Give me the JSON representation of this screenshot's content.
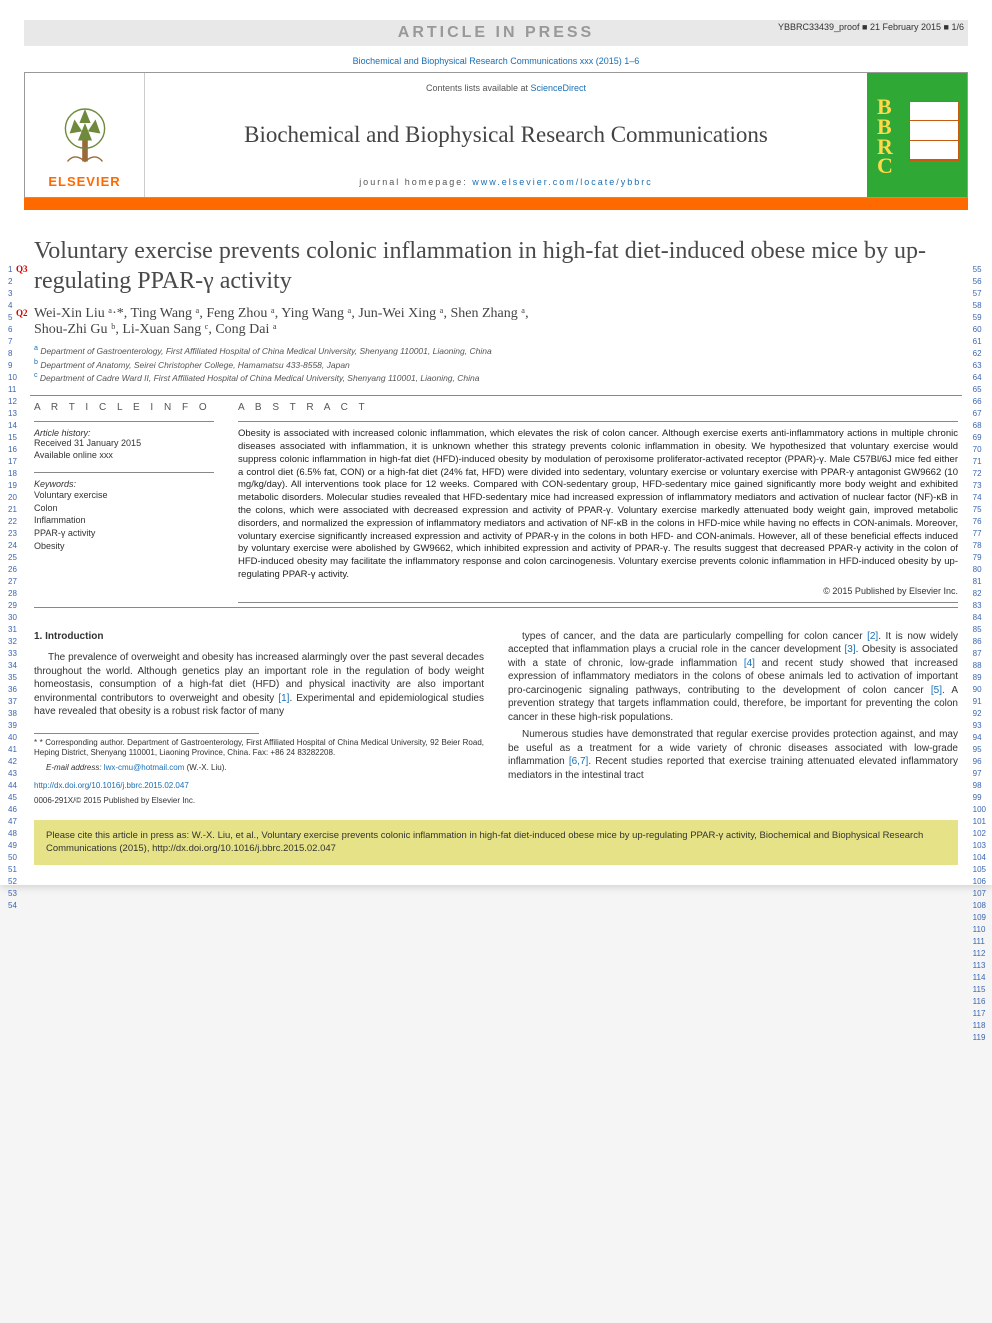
{
  "proof": {
    "article_in_press": "ARTICLE IN PRESS",
    "proof_stamp": "YBBRC33439_proof ■ 21 February 2015 ■ 1/6",
    "ref_link": "Biochemical and Biophysical Research Communications xxx (2015) 1–6"
  },
  "header": {
    "contents_line_pre": "Contents lists available at ",
    "contents_line_link": "ScienceDirect",
    "journal_title": "Biochemical and Biophysical Research Communications",
    "homepage_pre": "journal homepage: ",
    "homepage_link": "www.elsevier.com/locate/ybbrc",
    "publisher": "ELSEVIER",
    "bbrc_letters": "B\nB\nR\nC"
  },
  "title": "Voluntary exercise prevents colonic inflammation in high-fat diet-induced obese mice by up-regulating PPAR-γ activity",
  "q_marks": {
    "q3": "Q3",
    "q2": "Q2"
  },
  "authors_line1": "Wei-Xin Liu ᵃ·*, Ting Wang ᵃ, Feng Zhou ᵃ, Ying Wang ᵃ, Jun-Wei Xing ᵃ, Shen Zhang ᵃ,",
  "authors_line2": "Shou-Zhi Gu ᵇ, Li-Xuan Sang ᶜ, Cong Dai ᵃ",
  "affiliations": {
    "a": "Department of Gastroenterology, First Affiliated Hospital of China Medical University, Shenyang 110001, Liaoning, China",
    "b": "Department of Anatomy, Seirei Christopher College, Hamamatsu 433-8558, Japan",
    "c": "Department of Cadre Ward II, First Affiliated Hospital of China Medical University, Shenyang 110001, Liaoning, China"
  },
  "info": {
    "section_head": "A R T I C L E  I N F O",
    "history_label": "Article history:",
    "received": "Received 31 January 2015",
    "available": "Available online xxx",
    "keywords_head": "Keywords:",
    "keywords": [
      "Voluntary exercise",
      "Colon",
      "Inflammation",
      "PPAR-γ activity",
      "Obesity"
    ]
  },
  "abstract": {
    "section_head": "A B S T R A C T",
    "text": "Obesity is associated with increased colonic inflammation, which elevates the risk of colon cancer. Although exercise exerts anti-inflammatory actions in multiple chronic diseases associated with inflammation, it is unknown whether this strategy prevents colonic inflammation in obesity. We hypothesized that voluntary exercise would suppress colonic inflammation in high-fat diet (HFD)-induced obesity by modulation of peroxisome proliferator-activated receptor (PPAR)-γ. Male C57Bl/6J mice fed either a control diet (6.5% fat, CON) or a high-fat diet (24% fat, HFD) were divided into sedentary, voluntary exercise or voluntary exercise with PPAR-γ antagonist GW9662 (10 mg/kg/day). All interventions took place for 12 weeks. Compared with CON-sedentary group, HFD-sedentary mice gained significantly more body weight and exhibited metabolic disorders. Molecular studies revealed that HFD-sedentary mice had increased expression of inflammatory mediators and activation of nuclear factor (NF)-κB in the colons, which were associated with decreased expression and activity of PPAR-γ. Voluntary exercise markedly attenuated body weight gain, improved metabolic disorders, and normalized the expression of inflammatory mediators and activation of NF-κB in the colons in HFD-mice while having no effects in CON-animals. Moreover, voluntary exercise significantly increased expression and activity of PPAR-γ in the colons in both HFD- and CON-animals. However, all of these beneficial effects induced by voluntary exercise were abolished by GW9662, which inhibited expression and activity of PPAR-γ. The results suggest that decreased PPAR-γ activity in the colon of HFD-induced obesity may facilitate the inflammatory response and colon carcinogenesis. Voluntary exercise prevents colonic inflammation in HFD-induced obesity by up-regulating PPAR-γ activity.",
    "copyright": "© 2015 Published by Elsevier Inc."
  },
  "body": {
    "intro_head": "1. Introduction",
    "col1_p1": "The prevalence of overweight and obesity has increased alarmingly over the past several decades throughout the world. Although genetics play an important role in the regulation of body weight homeostasis, consumption of a high-fat diet (HFD) and physical inactivity are also important environmental contributors to overweight and obesity [1]. Experimental and epidemiological studies have revealed that obesity is a robust risk factor of many",
    "col2_p1": "types of cancer, and the data are particularly compelling for colon cancer [2]. It is now widely accepted that inflammation plays a crucial role in the cancer development [3]. Obesity is associated with a state of chronic, low-grade inflammation [4] and recent study showed that increased expression of inflammatory mediators in the colons of obese animals led to activation of important pro-carcinogenic signaling pathways, contributing to the development of colon cancer [5]. A prevention strategy that targets inflammation could, therefore, be important for preventing the colon cancer in these high-risk populations.",
    "col2_p2": "Numerous studies have demonstrated that regular exercise provides protection against, and may be useful as a treatment for a wide variety of chronic diseases associated with low-grade inflammation [6,7]. Recent studies reported that exercise training attenuated elevated inflammatory mediators in the intestinal tract"
  },
  "footnote": {
    "corr": "* Corresponding author. Department of Gastroenterology, First Affiliated Hospital of China Medical University, 92 Beier Road, Heping District, Shenyang 110001, Liaoning Province, China. Fax: +86 24 83282208.",
    "email_label": "E-mail address: ",
    "email": "lwx-cmu@hotmail.com",
    "email_tail": " (W.-X. Liu).",
    "doi": "http://dx.doi.org/10.1016/j.bbrc.2015.02.047",
    "issn": "0006-291X/© 2015 Published by Elsevier Inc."
  },
  "cite_box": "Please cite this article in press as: W.-X. Liu, et al., Voluntary exercise prevents colonic inflammation in high-fat diet-induced obese mice by up-regulating PPAR-γ activity, Biochemical and Biophysical Research Communications (2015), http://dx.doi.org/10.1016/j.bbrc.2015.02.047",
  "line_numbers": {
    "left_start": 1,
    "left_end": 54,
    "right_start": 55,
    "right_end": 119
  },
  "colors": {
    "orange": "#ff6a00",
    "link_blue": "#1a6eb3",
    "q_red": "#d40000",
    "cite_bg": "#e6e287",
    "cover_green": "#2fa836",
    "cover_gold": "#ffd94a"
  }
}
